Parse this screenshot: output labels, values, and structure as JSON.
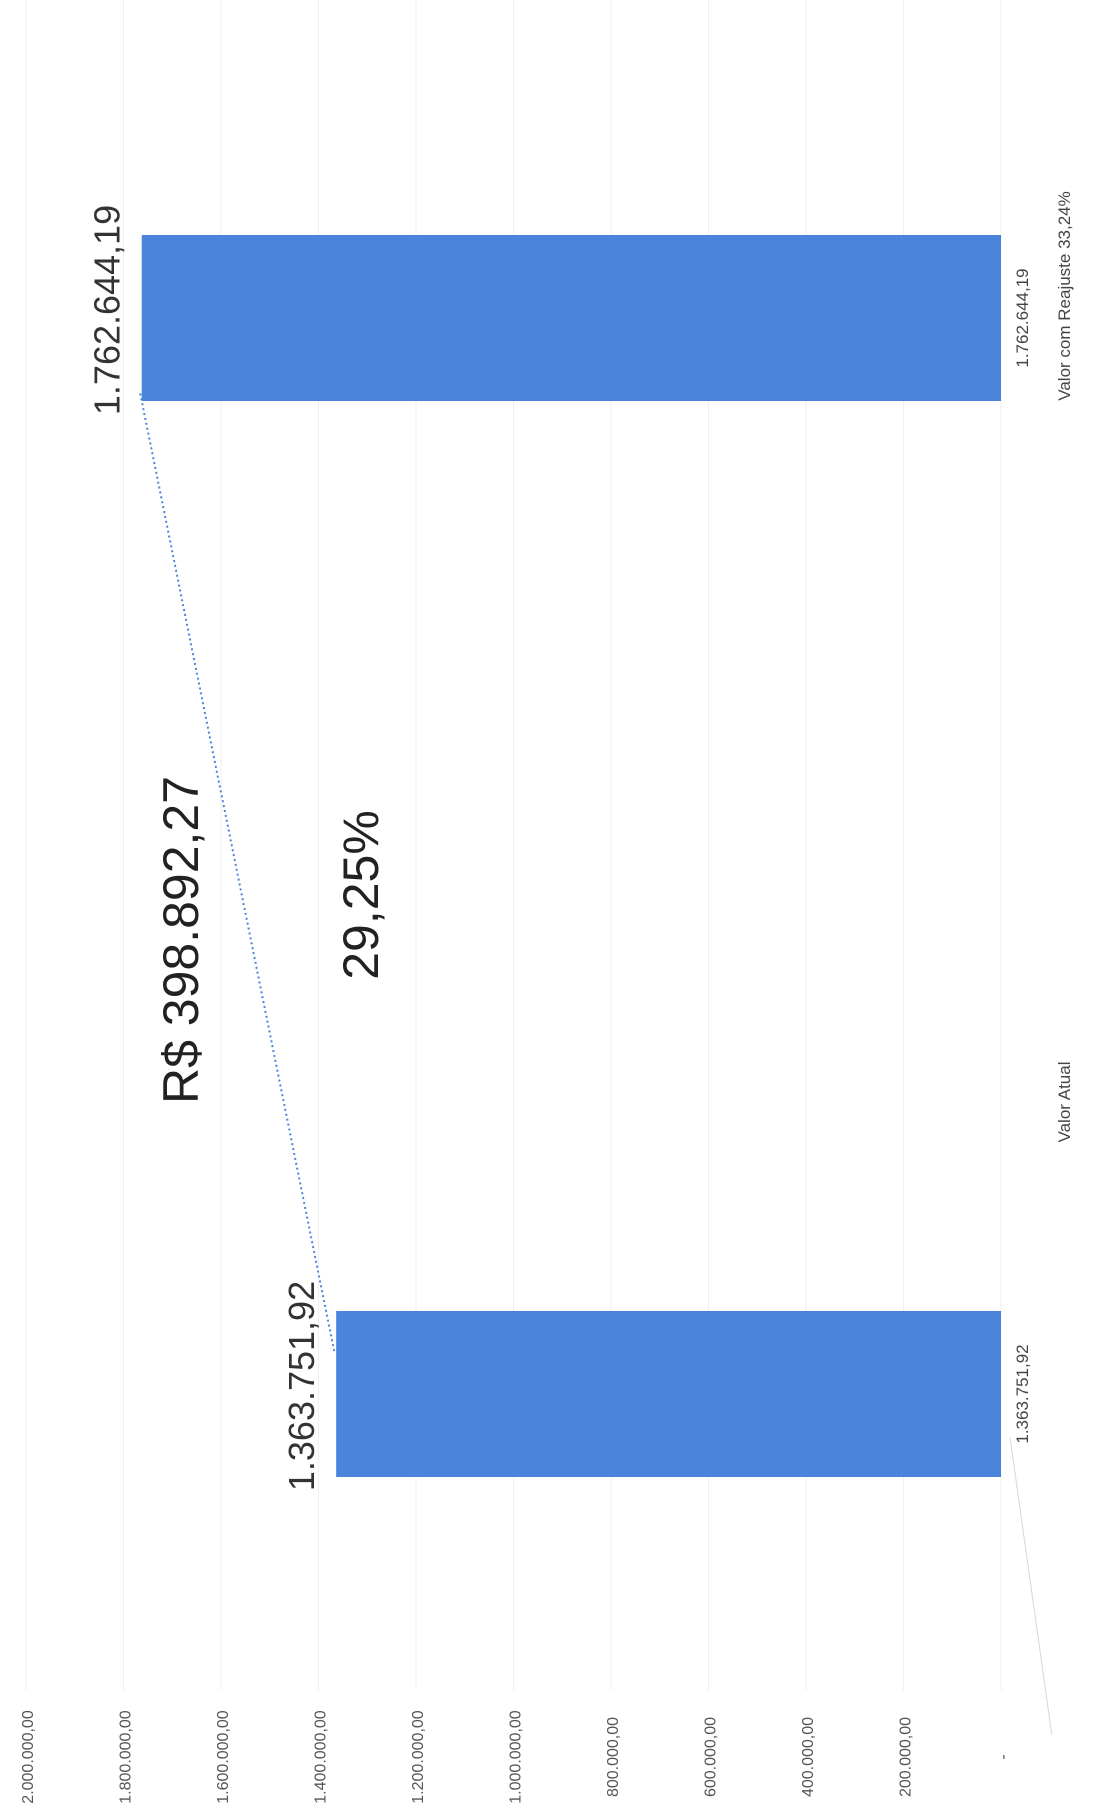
{
  "chart_data": {
    "type": "bar",
    "orientation": "rotated-90-ccw",
    "categories": [
      "Valor Atual",
      "Valor com Reajuste 33,24%"
    ],
    "values": [
      1363751.92,
      1762644.19
    ],
    "value_labels_small": [
      "1.363.751,92",
      "1.762.644,19"
    ],
    "value_labels_large": [
      "1.363.751,92",
      "1.762.644,19"
    ],
    "y_ticks": [
      "2.000.000,00",
      "1.800.000,00",
      "1.600.000,00",
      "1.400.000,00",
      "1.200.000,00",
      "1.000.000,00",
      "800.000,00",
      "600.000,00",
      "400.000,00",
      "200.000,00",
      "-"
    ],
    "ylim": [
      0,
      2000000
    ],
    "grid": true,
    "bar_color": "#4a85db",
    "connector_color": "#4a85db",
    "annotations": {
      "difference": "R$ 398.892,27",
      "percent": "29,25%"
    }
  }
}
